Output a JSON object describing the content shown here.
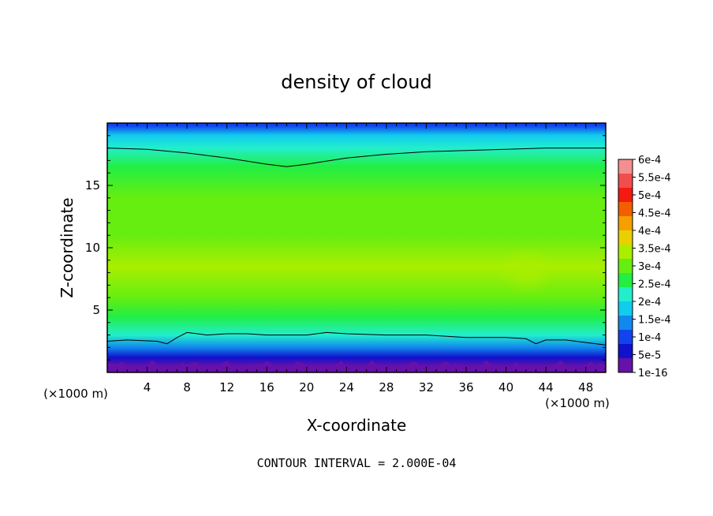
{
  "chart_data": {
    "type": "heatmap",
    "title": "density of cloud",
    "xlabel": "X-coordinate",
    "ylabel": "Z-coordinate",
    "x_unit": "(×1000 m)",
    "y_unit": "(×1000 m)",
    "xlim": [
      0,
      50
    ],
    "ylim": [
      0,
      20
    ],
    "x_ticks": [
      4,
      8,
      12,
      16,
      20,
      24,
      28,
      32,
      36,
      40,
      44,
      48
    ],
    "y_ticks": [
      5,
      10,
      15
    ],
    "footer": "CONTOUR INTERVAL = 2.000E-04",
    "colorbar": {
      "labels": [
        "6e-4",
        "5.5e-4",
        "5e-4",
        "4.5e-4",
        "4e-4",
        "3.5e-4",
        "3e-4",
        "2.5e-4",
        "2e-4",
        "1.5e-4",
        "1e-4",
        "5e-5",
        "1e-16"
      ],
      "colors": [
        "#f58f8f",
        "#f24d4d",
        "#f41a10",
        "#f25e00",
        "#f5a000",
        "#e9d000",
        "#aaee00",
        "#66ee11",
        "#22ee44",
        "#22eecc",
        "#11ccee",
        "#1188ee",
        "#1144ee",
        "#1111cc",
        "#6611aa"
      ]
    },
    "contours": [
      {
        "level": 0.0002,
        "x": [
          0,
          4,
          8,
          12,
          16,
          18,
          20,
          24,
          28,
          32,
          36,
          40,
          44,
          48,
          50
        ],
        "z": [
          18.0,
          17.9,
          17.6,
          17.2,
          16.7,
          16.5,
          16.7,
          17.2,
          17.5,
          17.7,
          17.8,
          17.9,
          18.0,
          18.0,
          18.0
        ]
      },
      {
        "level": 0.0002,
        "x": [
          0,
          2,
          5,
          6,
          7,
          8,
          10,
          12,
          14,
          16,
          18,
          20,
          22,
          24,
          28,
          32,
          36,
          40,
          42,
          43,
          44,
          46,
          48,
          50
        ],
        "z": [
          2.5,
          2.6,
          2.5,
          2.3,
          2.8,
          3.2,
          3.0,
          3.1,
          3.1,
          3.0,
          3.0,
          3.0,
          3.2,
          3.1,
          3.0,
          3.0,
          2.8,
          2.8,
          2.7,
          2.3,
          2.6,
          2.6,
          2.4,
          2.2
        ]
      }
    ],
    "field_layers": [
      {
        "z": 19.8,
        "v": 0.0001
      },
      {
        "z": 19.0,
        "v": 0.00016
      },
      {
        "z": 18.0,
        "v": 0.0002
      },
      {
        "z": 16.5,
        "v": 0.00026
      },
      {
        "z": 14.0,
        "v": 0.0003
      },
      {
        "z": 11.0,
        "v": 0.00031
      },
      {
        "z": 8.5,
        "v": 0.00033
      },
      {
        "z": 6.0,
        "v": 0.0003
      },
      {
        "z": 4.5,
        "v": 0.00026
      },
      {
        "z": 3.0,
        "v": 0.0002
      },
      {
        "z": 2.0,
        "v": 0.00013
      },
      {
        "z": 1.2,
        "v": 6e-05
      },
      {
        "z": 0.5,
        "v": 1e-16
      }
    ],
    "maximum": {
      "x": 42,
      "z": 8.2,
      "v": 0.00038
    }
  }
}
